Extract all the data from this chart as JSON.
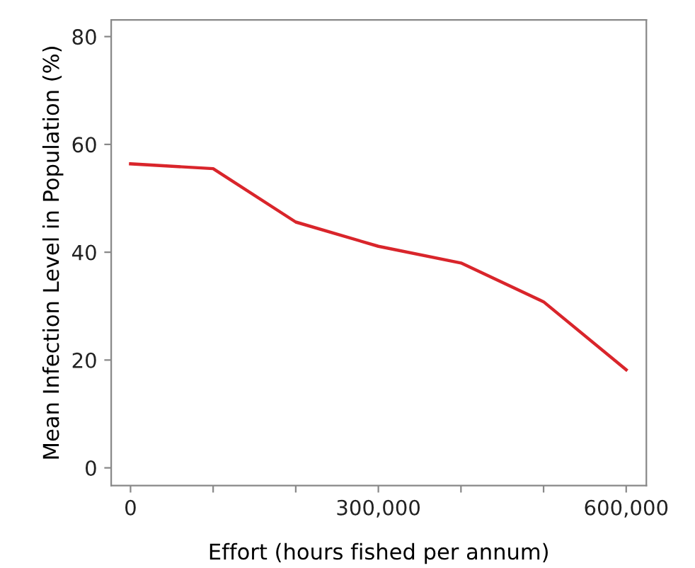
{
  "chart_data": {
    "type": "line",
    "xlabel": "Effort (hours fished per annum)",
    "ylabel": "Mean Infection Level in Population (%)",
    "x": [
      0,
      100000,
      200000,
      300000,
      400000,
      500000,
      600000
    ],
    "series": [
      {
        "color": "#d9252b",
        "values": [
          56.4,
          55.5,
          45.6,
          41.1,
          38.0,
          30.8,
          18.2
        ]
      }
    ],
    "xlim": [
      -23400,
      624400
    ],
    "ylim": [
      -3.3,
      83.1
    ],
    "xticks": [
      0,
      {
        "value": 100000,
        "label": null
      },
      {
        "value": 200000,
        "label": null
      },
      {
        "value": 300000,
        "label": "300,000"
      },
      {
        "value": 400000,
        "label": null
      },
      {
        "value": 500000,
        "label": null
      },
      {
        "value": 600000,
        "label": "600,000"
      }
    ],
    "yticks": [
      0,
      20,
      40,
      60,
      80
    ],
    "grid": false,
    "marker": "none",
    "line_style": "solid"
  }
}
